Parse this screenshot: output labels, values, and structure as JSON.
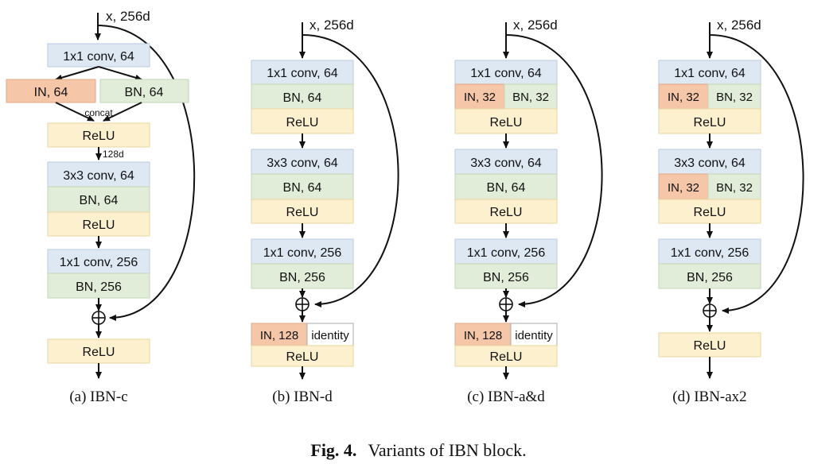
{
  "input_label": "x, 256d",
  "caption": {
    "prefix": "Fig. 4.",
    "text": "Variants of IBN block."
  },
  "labels": {
    "conv1": "1x1 conv, 64",
    "conv2": "3x3 conv, 64",
    "conv3": "1x1 conv, 256",
    "bn64": "BN, 64",
    "bn256": "BN, 256",
    "relu": "ReLU",
    "in64": "IN, 64",
    "in32": "IN, 32",
    "bn32": "BN, 32",
    "in128": "IN, 128",
    "identity": "identity",
    "concat": "concat",
    "dim128": "128d"
  },
  "panels": [
    {
      "id": "a",
      "caption": "(a) IBN-c"
    },
    {
      "id": "b",
      "caption": "(b) IBN-d"
    },
    {
      "id": "c",
      "caption": "(c) IBN-a&d"
    },
    {
      "id": "d",
      "caption": "(d) IBN-ax2"
    }
  ],
  "colors": {
    "conv": "#dde8f3",
    "bn": "#e2edd9",
    "relu": "#fdf0cf",
    "in": "#f6c6a8"
  }
}
